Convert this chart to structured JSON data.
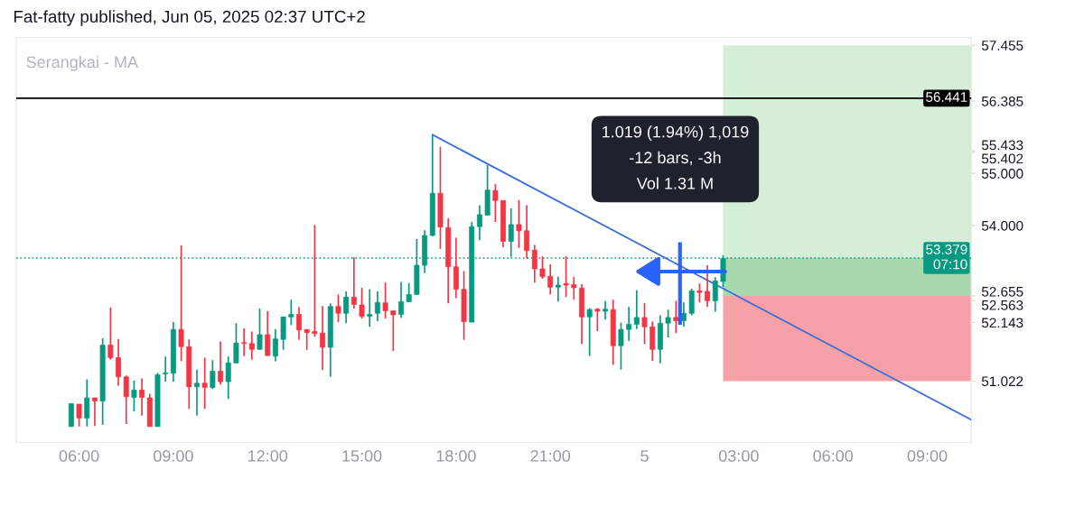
{
  "chart_data": {
    "type": "candlestick",
    "title": "Fat-fatty published, Jun 05, 2025 02:37 UTC+2",
    "subtitle": "Serangkai - MA",
    "x": [
      "2025-06-04T05:45",
      "2025-06-04T06:00",
      "2025-06-04T06:15",
      "2025-06-04T06:30",
      "2025-06-04T06:45",
      "2025-06-04T07:00",
      "2025-06-04T07:15",
      "2025-06-04T07:30",
      "2025-06-04T07:45",
      "2025-06-04T08:00",
      "2025-06-04T08:15",
      "2025-06-04T08:30",
      "2025-06-04T08:45",
      "2025-06-04T09:00",
      "2025-06-04T09:15",
      "2025-06-04T09:30",
      "2025-06-04T09:45",
      "2025-06-04T10:00",
      "2025-06-04T10:15",
      "2025-06-04T10:30",
      "2025-06-04T10:45",
      "2025-06-04T11:00",
      "2025-06-04T11:15",
      "2025-06-04T11:30",
      "2025-06-04T11:45",
      "2025-06-04T12:00",
      "2025-06-04T12:15",
      "2025-06-04T12:30",
      "2025-06-04T12:45",
      "2025-06-04T13:00",
      "2025-06-04T13:15",
      "2025-06-04T13:30",
      "2025-06-04T13:45",
      "2025-06-04T14:00",
      "2025-06-04T14:15",
      "2025-06-04T14:30",
      "2025-06-04T14:45",
      "2025-06-04T15:00",
      "2025-06-04T15:15",
      "2025-06-04T15:30",
      "2025-06-04T15:45",
      "2025-06-04T16:00",
      "2025-06-04T16:15",
      "2025-06-04T16:30",
      "2025-06-04T16:45",
      "2025-06-04T17:00",
      "2025-06-04T17:15",
      "2025-06-04T17:30",
      "2025-06-04T17:45",
      "2025-06-04T18:00",
      "2025-06-04T18:15",
      "2025-06-04T18:30",
      "2025-06-04T18:45",
      "2025-06-04T19:00",
      "2025-06-04T19:15",
      "2025-06-04T19:30",
      "2025-06-04T19:45",
      "2025-06-04T20:00",
      "2025-06-04T20:15",
      "2025-06-04T20:30",
      "2025-06-04T20:45",
      "2025-06-04T21:00",
      "2025-06-04T21:15",
      "2025-06-04T21:30",
      "2025-06-04T21:45",
      "2025-06-04T22:00",
      "2025-06-04T22:15",
      "2025-06-04T22:30",
      "2025-06-04T22:45",
      "2025-06-04T23:00",
      "2025-06-04T23:15",
      "2025-06-04T23:30",
      "2025-06-04T23:45",
      "2025-06-05T00:00",
      "2025-06-05T00:15",
      "2025-06-05T00:30",
      "2025-06-05T00:45",
      "2025-06-05T01:00",
      "2025-06-05T01:15",
      "2025-06-05T01:30",
      "2025-06-05T01:45",
      "2025-06-05T02:00",
      "2025-06-05T02:15",
      "2025-06-05T02:30"
    ],
    "ohlc": [
      [
        50.15,
        50.59,
        50.15,
        50.59
      ],
      [
        50.58,
        50.58,
        50.15,
        50.31
      ],
      [
        50.31,
        51.05,
        50.15,
        50.7
      ],
      [
        50.7,
        50.7,
        50.16,
        50.64
      ],
      [
        50.64,
        51.84,
        50.18,
        51.71
      ],
      [
        51.71,
        52.43,
        51.43,
        51.47
      ],
      [
        51.47,
        51.83,
        50.93,
        51.1
      ],
      [
        51.1,
        51.13,
        50.2,
        50.72
      ],
      [
        50.71,
        51.03,
        50.44,
        50.85
      ],
      [
        50.85,
        51.07,
        50.36,
        50.71
      ],
      [
        50.7,
        50.78,
        50.15,
        50.15
      ],
      [
        50.15,
        51.18,
        50.15,
        51.14
      ],
      [
        51.16,
        51.49,
        51.01,
        51.18
      ],
      [
        51.17,
        52.15,
        51.01,
        52.01
      ],
      [
        52.01,
        53.62,
        51.4,
        51.68
      ],
      [
        51.68,
        51.82,
        50.49,
        50.91
      ],
      [
        50.91,
        51.24,
        50.36,
        50.98
      ],
      [
        50.98,
        51.47,
        50.49,
        50.9
      ],
      [
        50.9,
        51.42,
        50.87,
        51.21
      ],
      [
        51.21,
        51.78,
        50.95,
        51.01
      ],
      [
        51.01,
        51.49,
        50.68,
        51.37
      ],
      [
        51.37,
        52.13,
        51.36,
        51.75
      ],
      [
        51.76,
        52.03,
        51.5,
        51.74
      ],
      [
        51.74,
        51.97,
        51.43,
        51.63
      ],
      [
        51.63,
        52.41,
        51.62,
        51.91
      ],
      [
        51.91,
        52.36,
        51.51,
        51.51
      ],
      [
        51.5,
        52.02,
        51.4,
        51.83
      ],
      [
        51.82,
        52.25,
        51.62,
        52.25
      ],
      [
        52.25,
        52.58,
        52.09,
        52.3
      ],
      [
        52.3,
        52.44,
        51.81,
        52.0
      ],
      [
        52.01,
        52.01,
        51.62,
        51.95
      ],
      [
        51.97,
        54.01,
        51.87,
        51.93
      ],
      [
        51.94,
        52.46,
        51.23,
        51.67
      ],
      [
        51.67,
        52.51,
        51.1,
        52.45
      ],
      [
        52.45,
        52.68,
        52.15,
        52.32
      ],
      [
        52.32,
        52.74,
        52.13,
        52.63
      ],
      [
        52.63,
        53.39,
        52.41,
        52.49
      ],
      [
        52.48,
        52.81,
        52.22,
        52.26
      ],
      [
        52.26,
        52.78,
        52.06,
        52.3
      ],
      [
        52.32,
        52.74,
        52.17,
        52.53
      ],
      [
        52.52,
        52.91,
        52.22,
        52.37
      ],
      [
        52.37,
        52.37,
        51.6,
        52.29
      ],
      [
        52.3,
        52.92,
        52.23,
        52.54
      ],
      [
        52.54,
        52.9,
        52.54,
        52.68
      ],
      [
        52.68,
        53.74,
        52.68,
        53.24
      ],
      [
        53.24,
        53.91,
        53.09,
        53.81
      ],
      [
        53.81,
        55.74,
        53.8,
        54.62
      ],
      [
        54.62,
        55.51,
        53.55,
        53.97
      ],
      [
        53.96,
        54.14,
        52.51,
        53.21
      ],
      [
        53.21,
        53.77,
        52.61,
        52.78
      ],
      [
        52.78,
        53.13,
        51.81,
        52.16
      ],
      [
        52.15,
        54.07,
        52.15,
        53.98
      ],
      [
        53.98,
        54.39,
        53.72,
        54.21
      ],
      [
        54.2,
        55.16,
        54.2,
        54.68
      ],
      [
        54.67,
        54.79,
        54.07,
        54.48
      ],
      [
        54.48,
        54.48,
        53.58,
        53.7
      ],
      [
        53.7,
        54.33,
        53.4,
        54.02
      ],
      [
        54.02,
        54.49,
        53.57,
        53.9
      ],
      [
        53.9,
        54.39,
        53.37,
        53.52
      ],
      [
        53.53,
        53.63,
        52.91,
        53.17
      ],
      [
        53.17,
        53.41,
        52.98,
        53.02
      ],
      [
        53.03,
        53.26,
        52.68,
        52.82
      ],
      [
        52.82,
        53.02,
        52.55,
        52.86
      ],
      [
        52.89,
        53.41,
        52.63,
        52.86
      ],
      [
        52.87,
        53.02,
        52.58,
        52.81
      ],
      [
        52.8,
        52.88,
        51.73,
        52.25
      ],
      [
        52.25,
        52.42,
        51.5,
        52.39
      ],
      [
        52.4,
        52.42,
        51.98,
        52.36
      ],
      [
        52.36,
        52.56,
        52.2,
        52.4
      ],
      [
        52.39,
        52.58,
        51.33,
        51.7
      ],
      [
        51.7,
        52.14,
        51.24,
        52.01
      ],
      [
        52.01,
        52.44,
        51.79,
        52.11
      ],
      [
        52.11,
        52.76,
        52.02,
        52.24
      ],
      [
        52.24,
        52.52,
        51.73,
        52.06
      ],
      [
        52.06,
        52.16,
        51.41,
        51.63
      ],
      [
        51.63,
        52.28,
        51.36,
        52.13
      ],
      [
        52.13,
        52.39,
        51.86,
        52.24
      ],
      [
        52.24,
        52.56,
        51.94,
        52.18
      ],
      [
        52.18,
        52.53,
        52.06,
        52.32
      ],
      [
        52.32,
        52.79,
        52.28,
        52.75
      ],
      [
        52.75,
        52.89,
        52.53,
        52.72
      ],
      [
        52.74,
        53.24,
        52.44,
        52.56
      ],
      [
        52.56,
        53.01,
        52.35,
        52.94
      ],
      [
        52.93,
        53.43,
        52.82,
        53.37
      ]
    ],
    "series": [
      {
        "type": "line",
        "x": [
          "2025-06-04T17:15",
          "2025-06-05T10:24"
        ],
        "values": [
          55.74,
          50.28
        ],
        "color": "#3b6fd8"
      }
    ],
    "ref_lines": [
      {
        "axis": "y",
        "value": 56.441,
        "label": "56.441",
        "color": "#000000",
        "line_style": "solid"
      },
      {
        "axis": "y",
        "value": 53.379,
        "label": "53.379\n07:10",
        "color": "#089981",
        "line_style": "dotted"
      }
    ],
    "bands": [
      {
        "axis": "y",
        "from": 52.655,
        "to": 57.455,
        "color": "#d5eed8"
      },
      {
        "axis": "y",
        "from": 52.655,
        "to": 53.379,
        "color": "#a8d8ad"
      },
      {
        "axis": "y",
        "from": 51.022,
        "to": 52.655,
        "color": "#f6a1a8"
      }
    ],
    "annotations": [
      "1.019 (1.94%) 1,019\n-12 bars, -3h\nVol 1.31 M"
    ],
    "xlim": [
      "2025-06-04T04:00",
      "2025-06-05T10:24"
    ],
    "ylim": [
      49.85,
      57.6
    ],
    "xticks": [
      {
        "value": "2025-06-04T06:00",
        "label": "06:00"
      },
      {
        "value": "2025-06-04T09:00",
        "label": "09:00"
      },
      {
        "value": "2025-06-04T12:00",
        "label": "12:00"
      },
      {
        "value": "2025-06-04T15:00",
        "label": "15:00"
      },
      {
        "value": "2025-06-04T18:00",
        "label": "18:00"
      },
      {
        "value": "2025-06-04T21:00",
        "label": "21:00"
      },
      {
        "value": "2025-06-05T00:00",
        "label": "5"
      },
      {
        "value": "2025-06-05T03:00",
        "label": "03:00"
      },
      {
        "value": "2025-06-05T06:00",
        "label": "06:00"
      },
      {
        "value": "2025-06-05T09:00",
        "label": "09:00"
      }
    ],
    "yticks": [
      {
        "value": 57.455,
        "label": "57.455"
      },
      {
        "value": 56.385,
        "label": "56.385"
      },
      {
        "value": 55.433,
        "label": "55.433"
      },
      {
        "value": 55.402,
        "label": "55.402"
      },
      {
        "value": 55,
        "label": "55.000"
      },
      {
        "value": 54,
        "label": "54.000"
      },
      {
        "value": 52.655,
        "label": "52.655"
      },
      {
        "value": 52.563,
        "label": "52.563"
      },
      {
        "value": 52.143,
        "label": "52.143"
      },
      {
        "value": 51.022,
        "label": "51.022"
      }
    ]
  }
}
